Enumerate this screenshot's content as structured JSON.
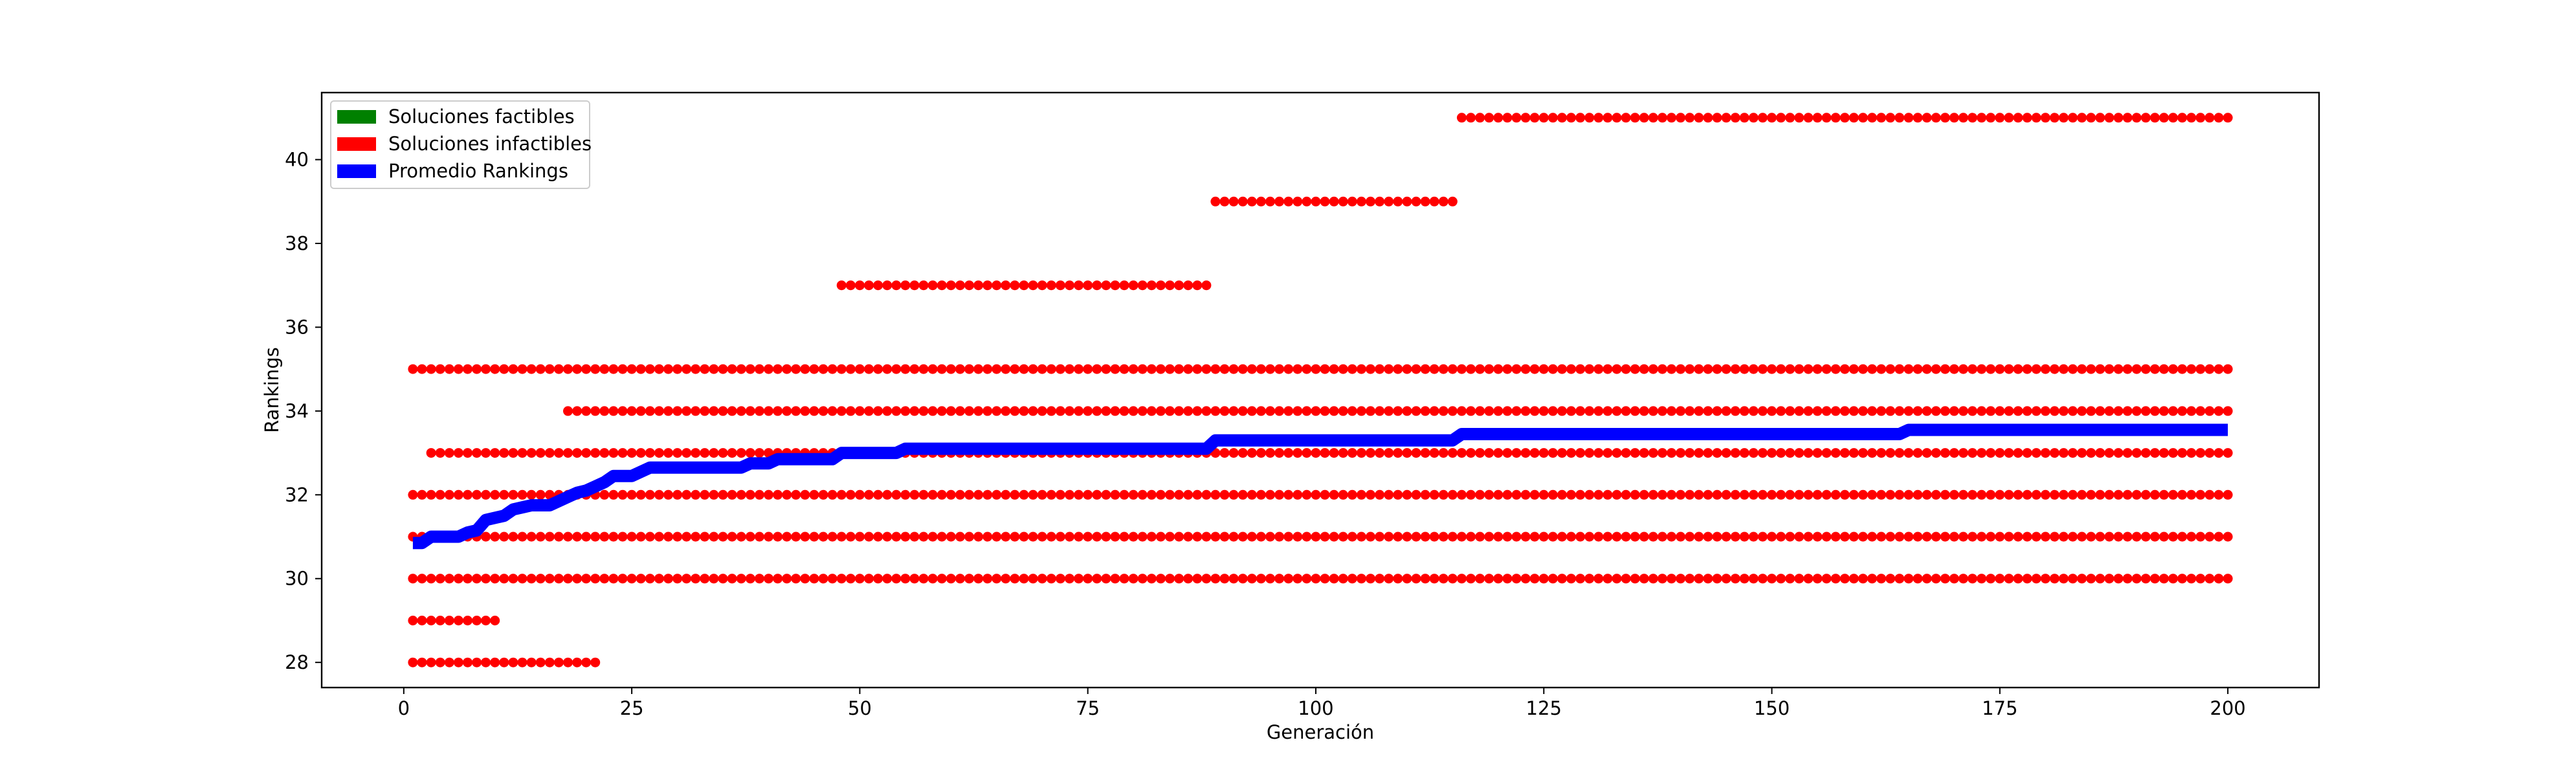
{
  "chart_data": {
    "type": "scatter",
    "title": "",
    "xlabel": "Generación",
    "ylabel": "Rankings",
    "xlim": [
      -9,
      210
    ],
    "ylim": [
      27.4,
      41.6
    ],
    "xticks": [
      0,
      25,
      50,
      75,
      100,
      125,
      150,
      175,
      200
    ],
    "yticks": [
      28,
      30,
      32,
      34,
      36,
      38,
      40
    ],
    "grid": false,
    "legend_position": "top-left",
    "legend": [
      {
        "label": "Soluciones factibles",
        "color": "#008000"
      },
      {
        "label": "Soluciones infactibles",
        "color": "#ff0000"
      },
      {
        "label": "Promedio Rankings",
        "color": "#0000ff"
      }
    ],
    "infeasible_series": [
      {
        "y": 28,
        "x_range": [
          1,
          21
        ]
      },
      {
        "y": 29,
        "x_range": [
          1,
          10
        ]
      },
      {
        "y": 30,
        "x_range": [
          1,
          200
        ]
      },
      {
        "y": 31,
        "x_range": [
          1,
          200
        ]
      },
      {
        "y": 32,
        "x_range": [
          1,
          200
        ]
      },
      {
        "y": 33,
        "x_range": [
          3,
          200
        ]
      },
      {
        "y": 34,
        "x_range": [
          18,
          200
        ]
      },
      {
        "y": 35,
        "x_range": [
          1,
          200
        ]
      },
      {
        "y": 37,
        "x_range": [
          48,
          88
        ]
      },
      {
        "y": 39,
        "x_range": [
          89,
          115
        ]
      },
      {
        "y": 41,
        "x_range": [
          116,
          200
        ]
      }
    ],
    "average_series": {
      "name": "Promedio Rankings",
      "points": [
        [
          1,
          30.85
        ],
        [
          2,
          30.85
        ],
        [
          3,
          31.0
        ],
        [
          6,
          31.0
        ],
        [
          7,
          31.1
        ],
        [
          8,
          31.15
        ],
        [
          9,
          31.4
        ],
        [
          10,
          31.45
        ],
        [
          11,
          31.5
        ],
        [
          12,
          31.65
        ],
        [
          13,
          31.7
        ],
        [
          14,
          31.75
        ],
        [
          16,
          31.75
        ],
        [
          17,
          31.85
        ],
        [
          18,
          31.95
        ],
        [
          19,
          32.05
        ],
        [
          20,
          32.1
        ],
        [
          21,
          32.2
        ],
        [
          22,
          32.3
        ],
        [
          23,
          32.45
        ],
        [
          25,
          32.45
        ],
        [
          26,
          32.55
        ],
        [
          27,
          32.65
        ],
        [
          37,
          32.65
        ],
        [
          38,
          32.75
        ],
        [
          40,
          32.75
        ],
        [
          41,
          32.85
        ],
        [
          47,
          32.85
        ],
        [
          48,
          33.0
        ],
        [
          54,
          33.0
        ],
        [
          55,
          33.1
        ],
        [
          88,
          33.1
        ],
        [
          89,
          33.3
        ],
        [
          115,
          33.3
        ],
        [
          116,
          33.45
        ],
        [
          164,
          33.45
        ],
        [
          165,
          33.55
        ],
        [
          200,
          33.55
        ]
      ]
    }
  }
}
